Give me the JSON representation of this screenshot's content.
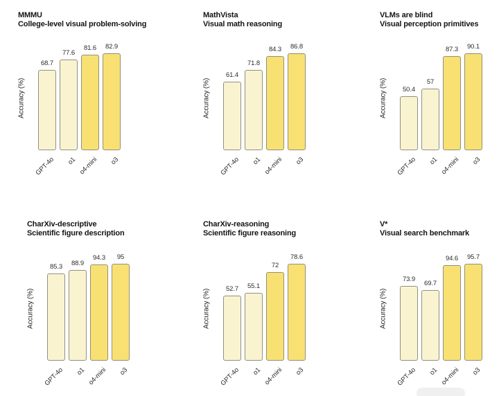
{
  "figure": {
    "background": "#ffffff",
    "y_axis_label": "Accuracy (%)",
    "models": [
      "GPT-4o",
      "o1",
      "o4-mini",
      "o3"
    ]
  },
  "colors": {
    "bar_light": "#faf3d0",
    "bar_dark": "#f8e172",
    "bar_border": "#918f80",
    "title_text": "#141414",
    "label_text": "#2b2b2b",
    "watermark": "#ececec"
  },
  "bar_styles": [
    "light",
    "light",
    "dark",
    "dark"
  ],
  "chart_data": [
    {
      "type": "bar",
      "title": "MMMU",
      "subtitle": "College-level visual problem-solving",
      "categories": [
        "GPT-4o",
        "o1",
        "o4-mini",
        "o3"
      ],
      "values": [
        68.7,
        77.6,
        81.6,
        82.9
      ],
      "xlabel": "",
      "ylabel": "Accuracy (%)",
      "grid": false,
      "legend": "none"
    },
    {
      "type": "bar",
      "title": "MathVista",
      "subtitle": "Visual math reasoning",
      "categories": [
        "GPT-4o",
        "o1",
        "o4-mini",
        "o3"
      ],
      "values": [
        61.4,
        71.8,
        84.3,
        86.8
      ],
      "xlabel": "",
      "ylabel": "Accuracy (%)",
      "grid": false,
      "legend": "none"
    },
    {
      "type": "bar",
      "title": "VLMs are blind",
      "subtitle": "Visual perception primitives",
      "categories": [
        "GPT-4o",
        "o1",
        "o4-mini",
        "o3"
      ],
      "values": [
        50.4,
        57,
        87.3,
        90.1
      ],
      "xlabel": "",
      "ylabel": "Accuracy (%)",
      "grid": false,
      "legend": "none"
    },
    {
      "type": "bar",
      "title": "CharXiv-descriptive",
      "subtitle": "Scientific figure description",
      "categories": [
        "GPT-4o",
        "o1",
        "o4-mini",
        "o3"
      ],
      "values": [
        85.3,
        88.9,
        94.3,
        95
      ],
      "xlabel": "",
      "ylabel": "Accuracy (%)",
      "grid": false,
      "legend": "none"
    },
    {
      "type": "bar",
      "title": "CharXiv-reasoning",
      "subtitle": "Scientific figure reasoning",
      "categories": [
        "GPT-4o",
        "o1",
        "o4-mini",
        "o3"
      ],
      "values": [
        52.7,
        55.1,
        72,
        78.6
      ],
      "xlabel": "",
      "ylabel": "Accuracy (%)",
      "grid": false,
      "legend": "none"
    },
    {
      "type": "bar",
      "title": "V*",
      "subtitle": "Visual search benchmark",
      "categories": [
        "GPT-4o",
        "o1",
        "o4-mini",
        "o3"
      ],
      "values": [
        73.9,
        69.7,
        94.6,
        95.7
      ],
      "xlabel": "",
      "ylabel": "Accuracy (%)",
      "grid": false,
      "legend": "none"
    }
  ]
}
